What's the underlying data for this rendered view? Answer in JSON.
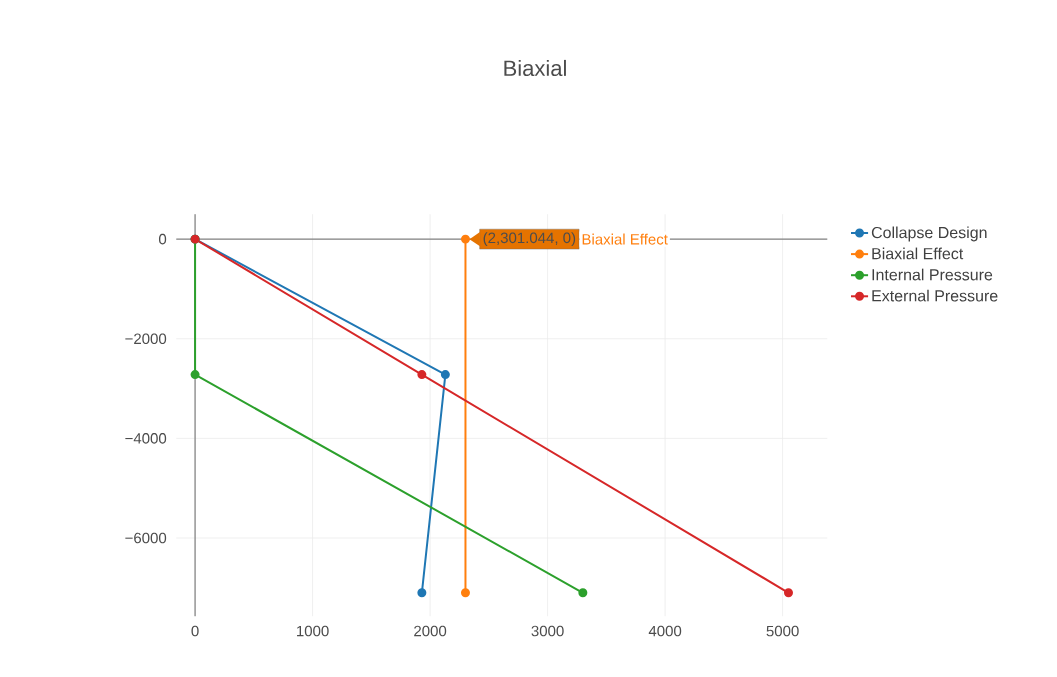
{
  "chart_data": {
    "type": "line",
    "title": "Biaxial",
    "series": [
      {
        "name": "Collapse Design",
        "color": "#1f77b4",
        "x": [
          0,
          2130,
          1930
        ],
        "values": [
          0,
          -2720,
          -7100
        ]
      },
      {
        "name": "Biaxial Effect",
        "color": "#ff7f0e",
        "x": [
          2301.044,
          2301.044
        ],
        "values": [
          0,
          -7100
        ]
      },
      {
        "name": "Internal Pressure",
        "color": "#2ca02c",
        "x": [
          0,
          0,
          3300
        ],
        "values": [
          0,
          -2720,
          -7100
        ]
      },
      {
        "name": "External Pressure",
        "color": "#d62728",
        "x": [
          0,
          1930,
          5050
        ],
        "values": [
          0,
          -2720,
          -7100
        ]
      }
    ],
    "xlim": [
      -160,
      5380
    ],
    "ylim": [
      -7570,
      500
    ],
    "xticks": [
      0,
      1000,
      2000,
      3000,
      4000,
      5000
    ],
    "yticks": [
      {
        "value": 0,
        "label": "0"
      },
      {
        "value": -2000,
        "label": "−2000"
      },
      {
        "value": -4000,
        "label": "−4000"
      },
      {
        "value": -6000,
        "label": "−6000"
      }
    ],
    "annotations": [
      {
        "text": "(2,301.044, 0)",
        "x": 2301.044,
        "y": 0
      },
      "Biaxial Effect"
    ],
    "grid": true,
    "legend": "top right",
    "marker": "circle",
    "line_style": "solid"
  }
}
